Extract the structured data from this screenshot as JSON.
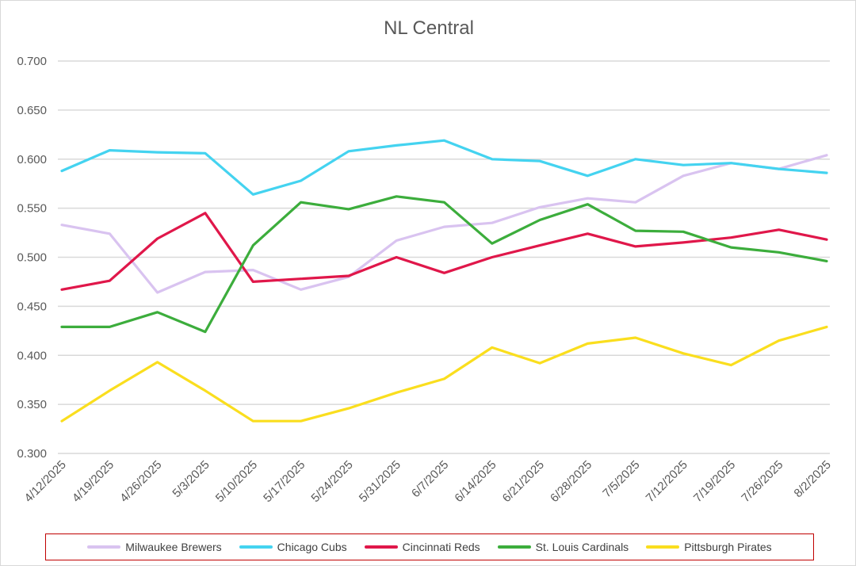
{
  "chart_data": {
    "type": "line",
    "title": "NL Central",
    "xlabel": "",
    "ylabel": "",
    "ylim": [
      0.3,
      0.7
    ],
    "yticks": [
      "0.300",
      "0.350",
      "0.400",
      "0.450",
      "0.500",
      "0.550",
      "0.600",
      "0.650",
      "0.700"
    ],
    "categories": [
      "4/12/2025",
      "4/19/2025",
      "4/26/2025",
      "5/3/2025",
      "5/10/2025",
      "5/17/2025",
      "5/24/2025",
      "5/31/2025",
      "6/7/2025",
      "6/14/2025",
      "6/21/2025",
      "6/28/2025",
      "7/5/2025",
      "7/12/2025",
      "7/19/2025",
      "7/26/2025",
      "8/2/2025"
    ],
    "grid": true,
    "legend_position": "bottom",
    "series": [
      {
        "name": "Milwaukee Brewers",
        "color": "#d9c3f0",
        "values": [
          0.533,
          0.524,
          0.464,
          0.485,
          0.487,
          0.467,
          0.48,
          0.517,
          0.531,
          0.535,
          0.551,
          0.56,
          0.556,
          0.583,
          0.596,
          0.59,
          0.604
        ]
      },
      {
        "name": "Chicago Cubs",
        "color": "#44d3f0",
        "values": [
          0.588,
          0.609,
          0.607,
          0.606,
          0.564,
          0.578,
          0.608,
          0.614,
          0.619,
          0.6,
          0.598,
          0.583,
          0.6,
          0.594,
          0.596,
          0.59,
          0.586
        ]
      },
      {
        "name": "Cincinnati Reds",
        "color": "#e0174a",
        "values": [
          0.467,
          0.476,
          0.519,
          0.545,
          0.475,
          0.478,
          0.481,
          0.5,
          0.484,
          0.5,
          0.512,
          0.524,
          0.511,
          0.515,
          0.52,
          0.528,
          0.518
        ]
      },
      {
        "name": "St. Louis Cardinals",
        "color": "#3cad3c",
        "values": [
          0.429,
          0.429,
          0.444,
          0.424,
          0.512,
          0.556,
          0.549,
          0.562,
          0.556,
          0.514,
          0.538,
          0.554,
          0.527,
          0.526,
          0.51,
          0.505,
          0.496
        ]
      },
      {
        "name": "Pittsburgh Pirates",
        "color": "#fade1e",
        "values": [
          0.333,
          0.364,
          0.393,
          0.364,
          0.333,
          0.333,
          0.346,
          0.362,
          0.376,
          0.408,
          0.392,
          0.412,
          0.418,
          0.402,
          0.39,
          0.415,
          0.429
        ]
      }
    ]
  }
}
